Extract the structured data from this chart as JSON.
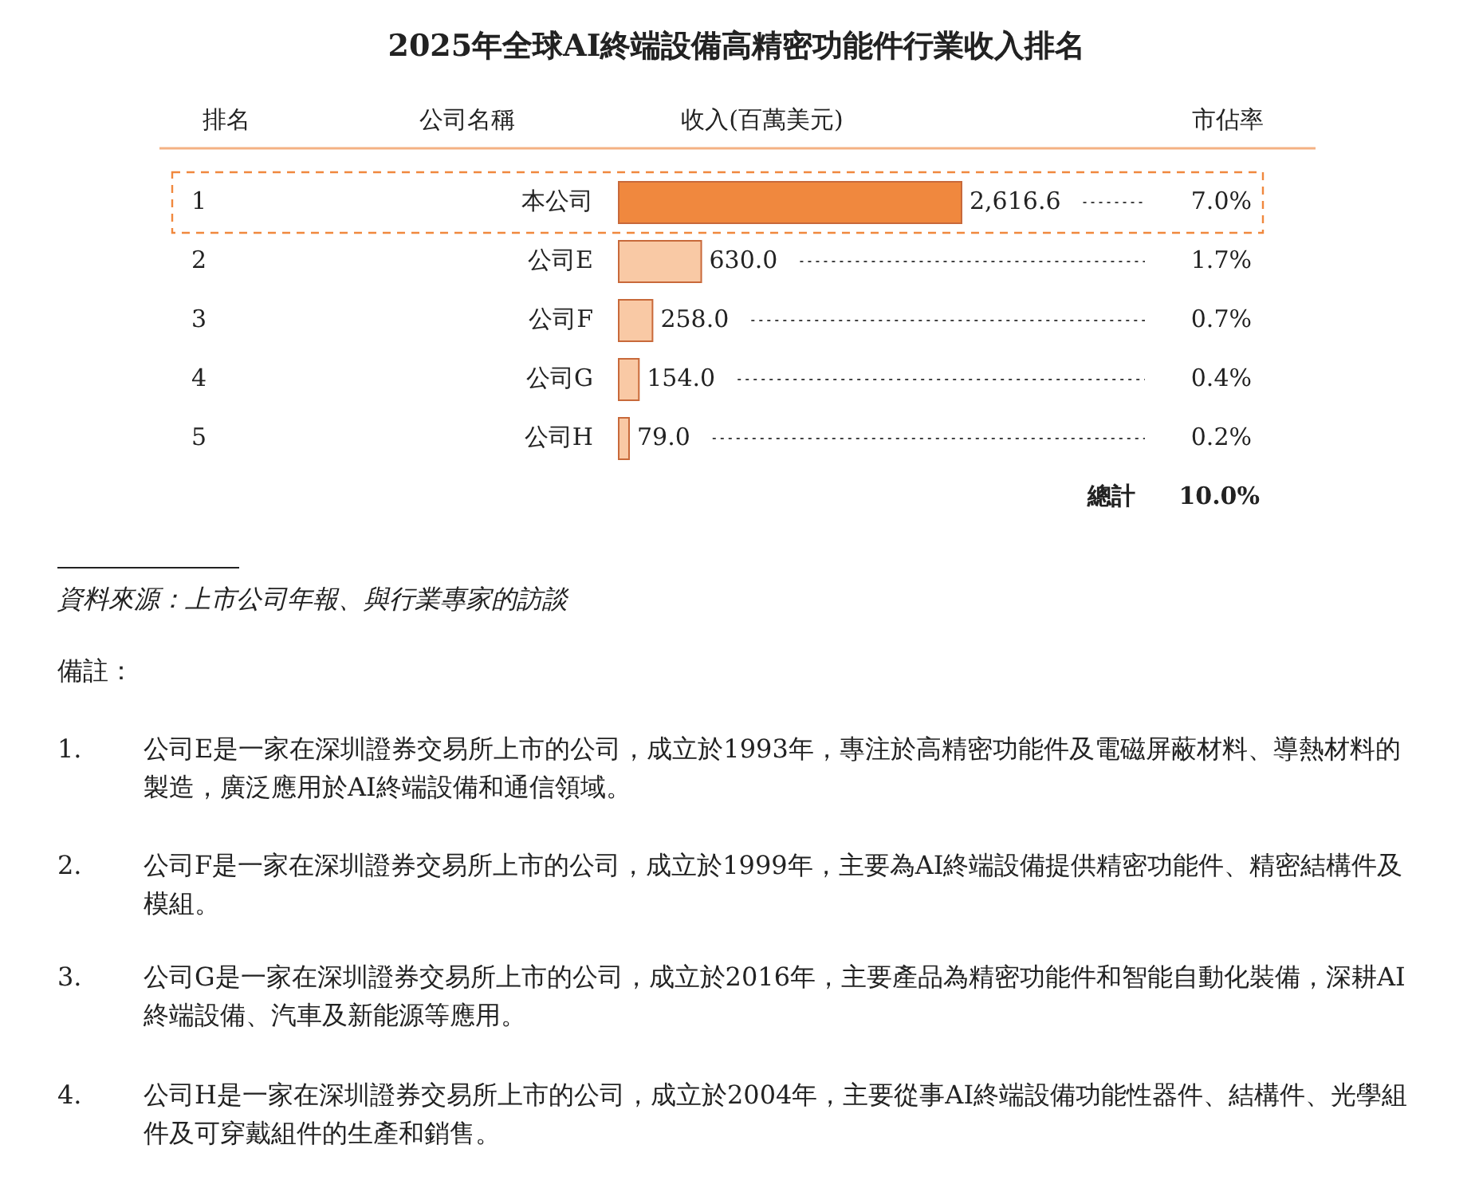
{
  "chart_data": {
    "type": "bar",
    "orientation": "horizontal",
    "title": "2025年全球AI終端設備高精密功能件行業收入排名",
    "categories": [
      "本公司",
      "公司E",
      "公司F",
      "公司G",
      "公司H"
    ],
    "values": [
      2616.6,
      630.0,
      258.0,
      154.0,
      79.0
    ],
    "value_labels": [
      "2,616.6",
      "630.0",
      "258.0",
      "154.0",
      "79.0"
    ],
    "colors": [
      "#f0883e",
      "#f9c9a5",
      "#f9c9a5",
      "#f9c9a5",
      "#f9c9a5"
    ],
    "annotations": [
      "排名",
      "公司名稱",
      "收入(百萬美元)",
      "市佔率",
      "1",
      "2",
      "3",
      "4",
      "5",
      "7.0%",
      "1.7%",
      "0.7%",
      "0.4%",
      "0.2%",
      "總計",
      "10.0%",
      "資料來源：上市公司年報、與行業專家的訪談",
      "備註：",
      "1.",
      "公司E是一家在深圳證券交易所上市的公司，成立於1993年，專注於高精密功能件及電磁屏蔽材料、導熱材料的製造，廣泛應用於AI終端設備和通信領域。",
      "2.",
      "公司F是一家在深圳證券交易所上市的公司，成立於1999年，主要為AI終端設備提供精密功能件、精密結構件及模組。",
      "3.",
      "公司G是一家在深圳證券交易所上市的公司，成立於2016年，主要產品為精密功能件和智能自動化裝備，深耕AI終端設備、汽車及新能源等應用。",
      "4.",
      "公司H是一家在深圳證券交易所上市的公司，成立於2004年，主要從事AI終端設備功能性器件、結構件、光學組件及可穿戴組件的生產和銷售。"
    ]
  }
}
